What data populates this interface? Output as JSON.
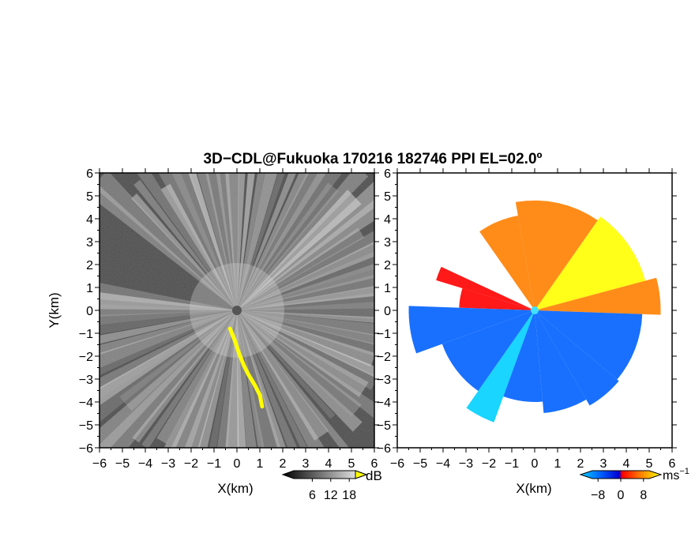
{
  "title": "3D−CDL@Fukuoka 170216 182746 PPI EL=02.0º",
  "chart_data": [
    {
      "type": "heatmap",
      "panel": "reflectivity",
      "xlabel": "X(km)",
      "ylabel": "Y(km)",
      "xlim": [
        -6,
        6
      ],
      "ylim": [
        -6,
        6
      ],
      "x_ticks": [
        -6,
        -5,
        -4,
        -3,
        -2,
        -1,
        0,
        1,
        2,
        3,
        4,
        5,
        6
      ],
      "y_ticks": [
        -6,
        -5,
        -4,
        -3,
        -2,
        -1,
        0,
        1,
        2,
        3,
        4,
        5,
        6
      ],
      "x_tick_labels": [
        "−6",
        "−5",
        "−4",
        "−3",
        "−2",
        "−1",
        "0",
        "1",
        "2",
        "3",
        "4",
        "5",
        "6"
      ],
      "y_tick_labels": [
        "6",
        "5",
        "4",
        "3",
        "2",
        "1",
        "0",
        "−1",
        "−2",
        "−3",
        "−4",
        "−5",
        "−6"
      ],
      "colorbar": {
        "unit": "dB",
        "ticks": [
          6,
          12,
          18
        ],
        "tick_labels": [
          "6",
          "12",
          "18"
        ],
        "range": [
          0,
          20
        ]
      },
      "bright_feature_color": "#ffff00",
      "bright_feature": [
        {
          "x": -0.3,
          "y": -0.8
        },
        {
          "x": -0.1,
          "y": -1.3
        },
        {
          "x": 0.1,
          "y": -1.9
        },
        {
          "x": 0.3,
          "y": -2.4
        },
        {
          "x": 0.5,
          "y": -2.8
        },
        {
          "x": 0.8,
          "y": -3.3
        },
        {
          "x": 1.0,
          "y": -3.7
        },
        {
          "x": 1.1,
          "y": -4.2
        }
      ]
    },
    {
      "type": "heatmap",
      "panel": "doppler_velocity",
      "xlabel": "X(km)",
      "xlim": [
        -6,
        6
      ],
      "ylim": [
        -6,
        6
      ],
      "x_ticks": [
        -6,
        -5,
        -4,
        -3,
        -2,
        -1,
        0,
        1,
        2,
        3,
        4,
        5,
        6
      ],
      "y_ticks": [
        -6,
        -5,
        -4,
        -3,
        -2,
        -1,
        0,
        1,
        2,
        3,
        4,
        5,
        6
      ],
      "x_tick_labels": [
        "−6",
        "−5",
        "−4",
        "−3",
        "−2",
        "−1",
        "0",
        "1",
        "2",
        "3",
        "4",
        "5",
        "6"
      ],
      "y_tick_labels": [
        "6",
        "5",
        "4",
        "3",
        "2",
        "1",
        "0",
        "−1",
        "−2",
        "−3",
        "−4",
        "−5",
        "−6"
      ],
      "colorbar": {
        "unit": "ms",
        "unit_exponent": "−1",
        "ticks": [
          -8,
          0,
          8
        ],
        "tick_labels": [
          "−8",
          "0",
          "8"
        ],
        "range": [
          -10,
          10
        ],
        "colors": [
          "#00d0ff",
          "#0060ff",
          "#0000d0",
          "#ff0000",
          "#ff8000",
          "#ffff00"
        ]
      },
      "sectors": [
        {
          "from_deg": 15,
          "to_deg": 55,
          "r_max_km": 5.0,
          "velocity": 7.5
        },
        {
          "from_deg": 55,
          "to_deg": 100,
          "r_max_km": 4.8,
          "velocity": 6.5
        },
        {
          "from_deg": 100,
          "to_deg": 125,
          "r_max_km": 4.2,
          "velocity": 5.5
        },
        {
          "from_deg": 155,
          "to_deg": 163,
          "r_max_km": 4.5,
          "velocity": 3.0
        },
        {
          "from_deg": 163,
          "to_deg": 178,
          "r_max_km": 3.3,
          "velocity": 1.5
        },
        {
          "from_deg": -2,
          "to_deg": 15,
          "r_max_km": 5.5,
          "velocity": 3.5
        },
        {
          "from_deg": 178,
          "to_deg": 200,
          "r_max_km": 5.5,
          "velocity": -4.5
        },
        {
          "from_deg": 200,
          "to_deg": 235,
          "r_max_km": 4.3,
          "velocity": -6.0
        },
        {
          "from_deg": 235,
          "to_deg": 250,
          "r_max_km": 5.2,
          "velocity": -9.0
        },
        {
          "from_deg": 250,
          "to_deg": 275,
          "r_max_km": 4.0,
          "velocity": -6.5
        },
        {
          "from_deg": 275,
          "to_deg": 300,
          "r_max_km": 4.5,
          "velocity": -5.0
        },
        {
          "from_deg": 300,
          "to_deg": 320,
          "r_max_km": 4.8,
          "velocity": -4.0
        },
        {
          "from_deg": 320,
          "to_deg": 358,
          "r_max_km": 4.7,
          "velocity": -4.5
        }
      ]
    }
  ]
}
